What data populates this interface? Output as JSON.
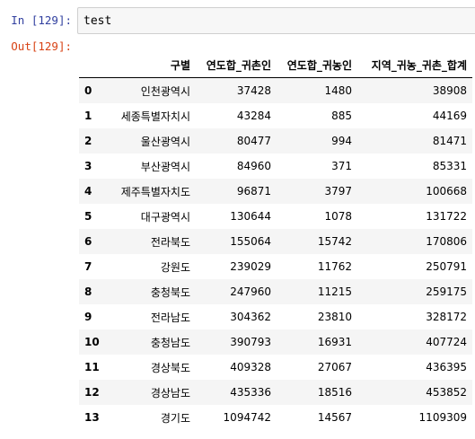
{
  "notebook": {
    "input_prompt": "In [129]:",
    "output_prompt": "Out[129]:",
    "code": "test"
  },
  "table": {
    "columns": [
      "구별",
      "연도합_귀촌인",
      "연도합_귀농인",
      "지역_귀농_귀촌_합계"
    ],
    "rows": [
      {
        "index": "0",
        "cells": [
          "인천광역시",
          "37428",
          "1480",
          "38908"
        ]
      },
      {
        "index": "1",
        "cells": [
          "세종특별자치시",
          "43284",
          "885",
          "44169"
        ]
      },
      {
        "index": "2",
        "cells": [
          "울산광역시",
          "80477",
          "994",
          "81471"
        ]
      },
      {
        "index": "3",
        "cells": [
          "부산광역시",
          "84960",
          "371",
          "85331"
        ]
      },
      {
        "index": "4",
        "cells": [
          "제주특별자치도",
          "96871",
          "3797",
          "100668"
        ]
      },
      {
        "index": "5",
        "cells": [
          "대구광역시",
          "130644",
          "1078",
          "131722"
        ]
      },
      {
        "index": "6",
        "cells": [
          "전라북도",
          "155064",
          "15742",
          "170806"
        ]
      },
      {
        "index": "7",
        "cells": [
          "강원도",
          "239029",
          "11762",
          "250791"
        ]
      },
      {
        "index": "8",
        "cells": [
          "충청북도",
          "247960",
          "11215",
          "259175"
        ]
      },
      {
        "index": "9",
        "cells": [
          "전라남도",
          "304362",
          "23810",
          "328172"
        ]
      },
      {
        "index": "10",
        "cells": [
          "충청남도",
          "390793",
          "16931",
          "407724"
        ]
      },
      {
        "index": "11",
        "cells": [
          "경상북도",
          "409328",
          "27067",
          "436395"
        ]
      },
      {
        "index": "12",
        "cells": [
          "경상남도",
          "435336",
          "18516",
          "453852"
        ]
      },
      {
        "index": "13",
        "cells": [
          "경기도",
          "1094742",
          "14567",
          "1109309"
        ]
      }
    ]
  }
}
